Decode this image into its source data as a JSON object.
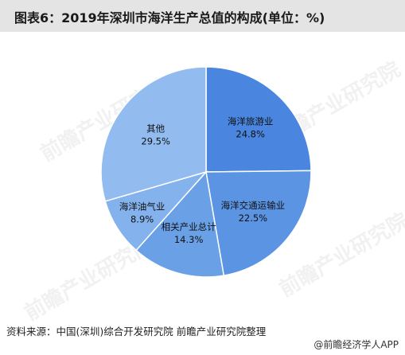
{
  "chart_data": {
    "type": "pie",
    "title": "图表6：2019年深圳市海洋生产总值的构成(单位：%)",
    "categories": [
      "海洋旅游业",
      "海洋交通运输业",
      "相关产业总计",
      "海洋油气业",
      "其他"
    ],
    "values": [
      24.8,
      22.5,
      14.3,
      8.9,
      29.5
    ],
    "value_labels": [
      "24.8%",
      "22.5%",
      "14.3%",
      "8.9%",
      "29.5%"
    ],
    "colors": [
      "#4a86e0",
      "#5a94e2",
      "#6aa0e6",
      "#84b2ec",
      "#92bcf0"
    ],
    "start_angle_deg": 0,
    "direction": "clockwise",
    "legend": "none"
  },
  "source": "资料来源：中国(深圳)综合开发研究院 前瞻产业研究院整理",
  "brand": "@前瞻经济学人APP",
  "watermark": "前瞻产业研究院"
}
